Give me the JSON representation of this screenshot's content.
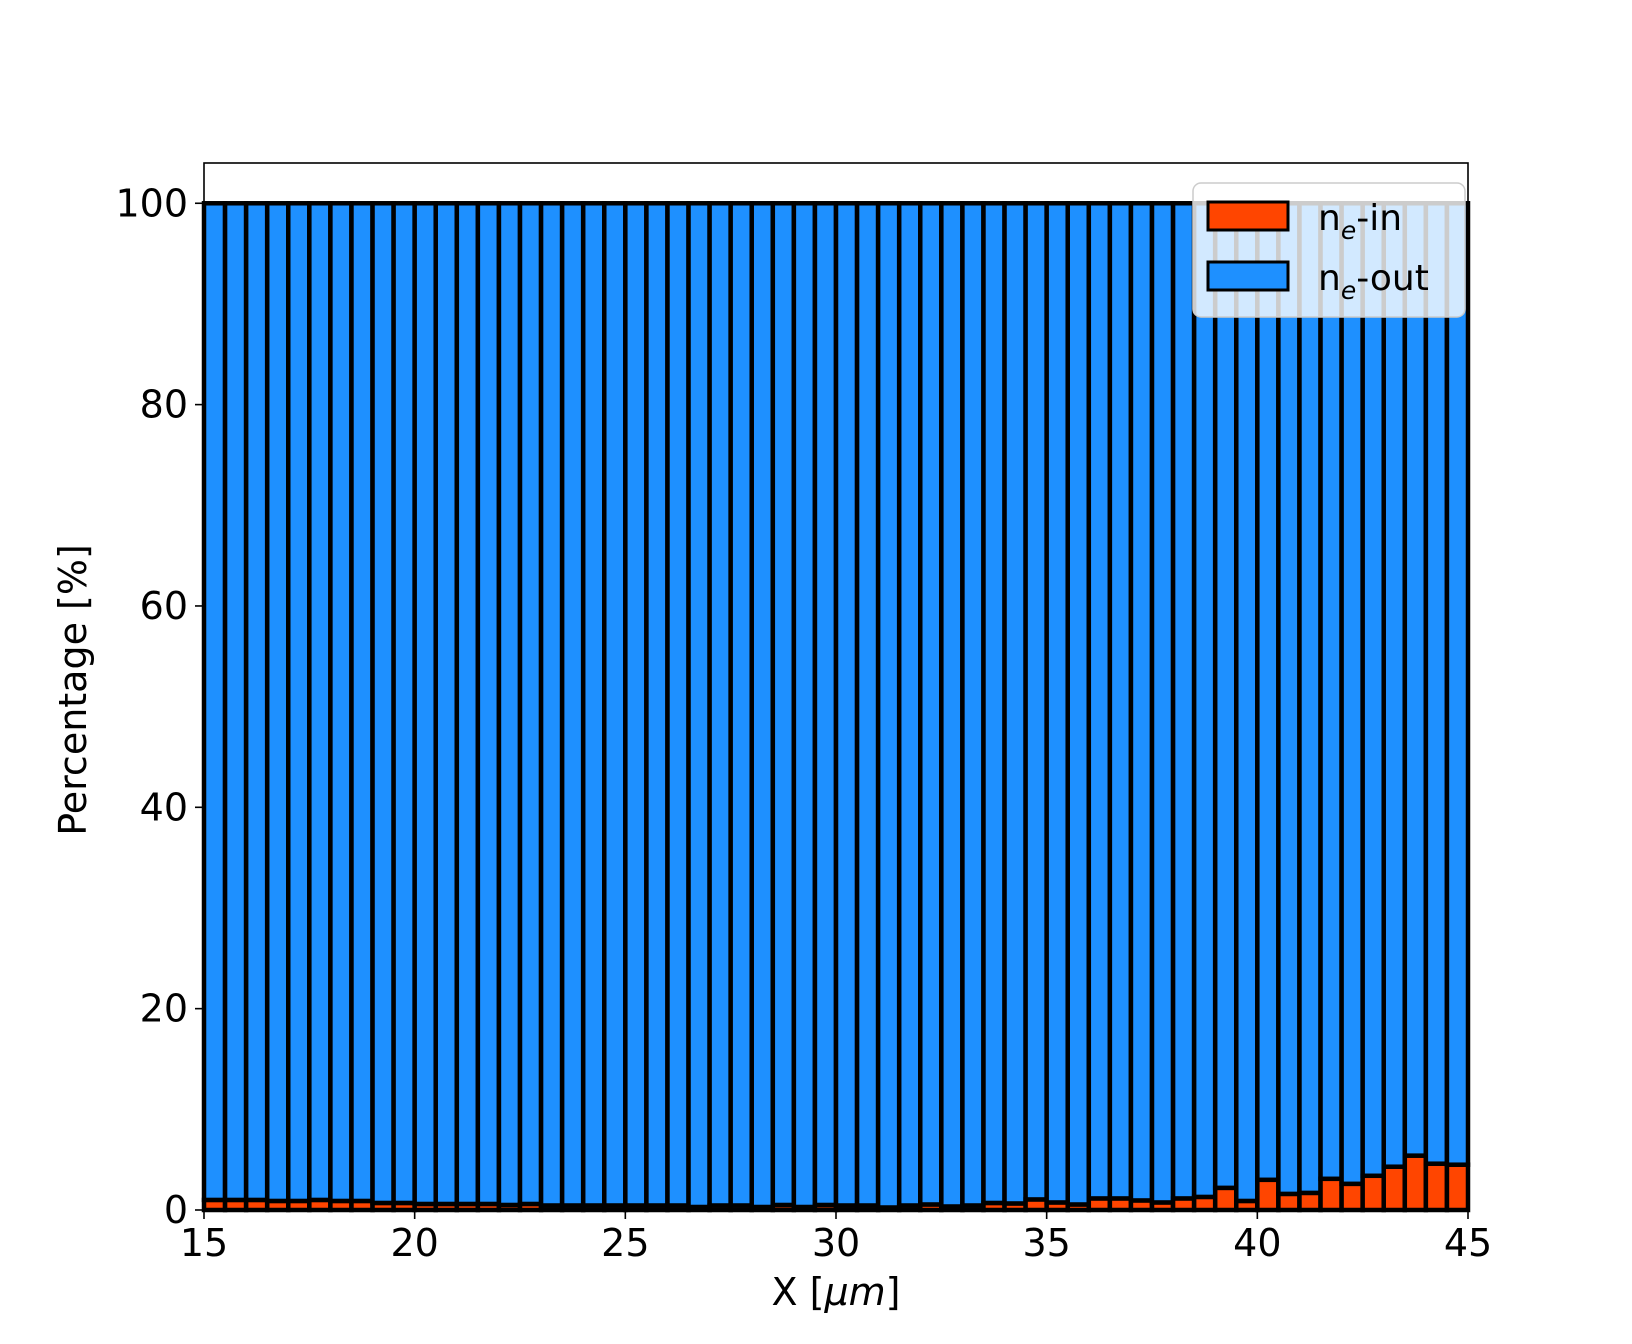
{
  "chart_data": {
    "type": "bar",
    "stacked": true,
    "title": "",
    "xlabel": "X  [μm]",
    "xlabel_parts": {
      "main": "X  [",
      "unit": "μm",
      "close": "]"
    },
    "ylabel": "Percentage  [%]",
    "xlim": [
      15,
      45
    ],
    "ylim": [
      0,
      104
    ],
    "xticks": [
      15,
      20,
      25,
      30,
      35,
      40,
      45
    ],
    "yticks": [
      0,
      20,
      40,
      60,
      80,
      100
    ],
    "grid": false,
    "legend_placement": "top-right",
    "bar_width": 0.5,
    "x": [
      15.25,
      15.75,
      16.25,
      16.75,
      17.25,
      17.75,
      18.25,
      18.75,
      19.25,
      19.75,
      20.25,
      20.75,
      21.25,
      21.75,
      22.25,
      22.75,
      23.25,
      23.75,
      24.25,
      24.75,
      25.25,
      25.75,
      26.25,
      26.75,
      27.25,
      27.75,
      28.25,
      28.75,
      29.25,
      29.75,
      30.25,
      30.75,
      31.25,
      31.75,
      32.25,
      32.75,
      33.25,
      33.75,
      34.25,
      34.75,
      35.25,
      35.75,
      36.25,
      36.75,
      37.25,
      37.75,
      38.25,
      38.75,
      39.25,
      39.75,
      40.25,
      40.75,
      41.25,
      41.75,
      42.25,
      42.75,
      43.25,
      43.75,
      44.25,
      44.75
    ],
    "series": [
      {
        "name": "n_e-in",
        "label_main": "n",
        "label_sub": "e",
        "label_rest": "-in",
        "color": "#ff4500",
        "values": [
          1.0,
          1.0,
          1.0,
          0.9,
          0.9,
          1.0,
          0.9,
          0.9,
          0.7,
          0.7,
          0.6,
          0.6,
          0.6,
          0.6,
          0.5,
          0.6,
          0.45,
          0.45,
          0.45,
          0.45,
          0.45,
          0.45,
          0.45,
          0.3,
          0.45,
          0.45,
          0.3,
          0.5,
          0.3,
          0.5,
          0.45,
          0.45,
          0.25,
          0.45,
          0.55,
          0.35,
          0.45,
          0.7,
          0.65,
          1.05,
          0.75,
          0.55,
          1.15,
          1.15,
          0.95,
          0.75,
          1.15,
          1.3,
          2.2,
          0.9,
          3.0,
          1.6,
          1.7,
          3.1,
          2.6,
          3.4,
          4.3,
          5.4,
          4.6,
          4.5
        ]
      },
      {
        "name": "n_e-out",
        "label_main": "n",
        "label_sub": "e",
        "label_rest": "-out",
        "color": "#1e90ff",
        "values_rule": "100 minus n_e-in"
      }
    ]
  }
}
